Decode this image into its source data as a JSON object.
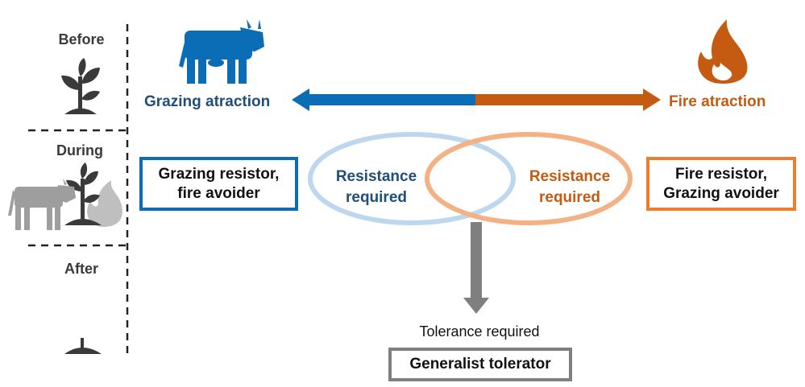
{
  "stages": {
    "before": "Before",
    "during": "During",
    "after": "After"
  },
  "axis": {
    "left_label": "Grazing atraction",
    "right_label": "Fire atraction"
  },
  "boxes": {
    "left": {
      "line1": "Grazing resistor,",
      "line2": "fire avoider"
    },
    "right": {
      "line1": "Fire resistor,",
      "line2": "Grazing avoider"
    },
    "bottom": {
      "label": "Generalist tolerator"
    }
  },
  "ellipses": {
    "left": {
      "line1": "Resistance",
      "line2": "required"
    },
    "right": {
      "line1": "Resistance",
      "line2": "required"
    }
  },
  "tolerance_label": "Tolerance required",
  "colors": {
    "blue": "#0b6db5",
    "orange": "#c55a11",
    "light_blue": "#bdd7ee",
    "light_orange": "#f4b183",
    "box_orange": "#ed7d31",
    "navy_text": "#1f4e79",
    "gray": "#7f7f7f",
    "dark_icon": "#3a3a3a"
  },
  "icons": [
    "cow-icon",
    "flame-icon",
    "plant-icon",
    "cow-plant-fire-icon",
    "sprout-icon"
  ]
}
